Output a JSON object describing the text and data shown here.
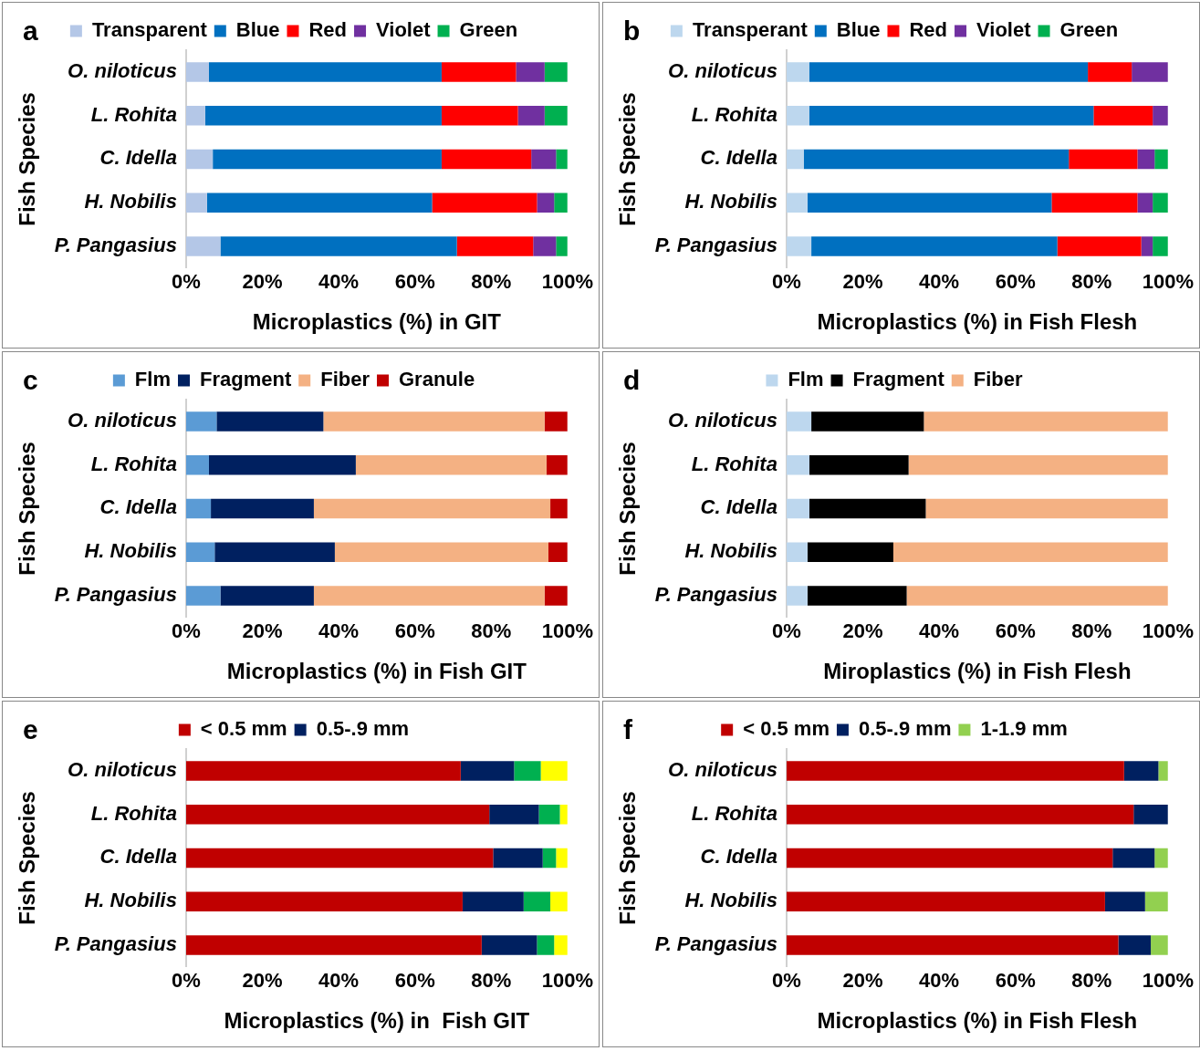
{
  "chart_data": [
    {
      "type": "bar",
      "title": "a",
      "orientation": "horizontal",
      "stacked": true,
      "legend": "top",
      "grid": false,
      "xlabel": "Microplastics (%) in GIT",
      "ylabel": "Fish Species",
      "categories": [
        "O. niloticus",
        "L. Rohita",
        "C. Idella",
        "H. Nobilis",
        "P. Pangasius"
      ],
      "xlim": [
        0,
        100
      ],
      "xticks": [
        {
          "value": 0,
          "label": "0%"
        },
        {
          "value": 20,
          "label": "20%"
        },
        {
          "value": 40,
          "label": "40%"
        },
        {
          "value": 60,
          "label": "60%"
        },
        {
          "value": 80,
          "label": "80%"
        },
        {
          "value": 100,
          "label": "100%"
        }
      ],
      "series": [
        {
          "name": "Transparent",
          "color": "#b4c7e7",
          "values": [
            6,
            5,
            7,
            5.5,
            9
          ]
        },
        {
          "name": "Blue",
          "color": "#0070c0",
          "values": [
            61,
            62,
            60,
            59,
            62
          ]
        },
        {
          "name": "Red",
          "color": "#ff0000",
          "values": [
            19.5,
            20,
            23.5,
            27.5,
            20
          ]
        },
        {
          "name": "Violet",
          "color": "#7030a0",
          "values": [
            7.5,
            7,
            6.5,
            4.5,
            6
          ]
        },
        {
          "name": "Green",
          "color": "#00b050",
          "values": [
            6,
            6,
            3,
            3.5,
            3
          ]
        }
      ]
    },
    {
      "type": "bar",
      "title": "b",
      "orientation": "horizontal",
      "stacked": true,
      "legend": "top",
      "grid": false,
      "xlabel": "Microplastics (%) in Fish Flesh",
      "ylabel": "Fish Species",
      "categories": [
        "O. niloticus",
        "L. Rohita",
        "C. Idella",
        "H. Nobilis",
        "P. Pangasius"
      ],
      "xlim": [
        0,
        100
      ],
      "xticks": [
        {
          "value": 0,
          "label": "0%"
        },
        {
          "value": 20,
          "label": "20%"
        },
        {
          "value": 40,
          "label": "40%"
        },
        {
          "value": 60,
          "label": "60%"
        },
        {
          "value": 80,
          "label": "80%"
        },
        {
          "value": 100,
          "label": "100%"
        }
      ],
      "series": [
        {
          "name": "Transperant",
          "color": "#bdd7ee",
          "values": [
            6,
            6,
            4.5,
            5.5,
            6.5
          ]
        },
        {
          "name": "Blue",
          "color": "#0070c0",
          "values": [
            73,
            74.5,
            69.5,
            64,
            64.5
          ]
        },
        {
          "name": "Red",
          "color": "#ff0000",
          "values": [
            11.5,
            15.5,
            18,
            22.5,
            22
          ]
        },
        {
          "name": "Violet",
          "color": "#7030a0",
          "values": [
            9.5,
            4,
            4.5,
            4,
            3
          ]
        },
        {
          "name": "Green",
          "color": "#00b050",
          "values": [
            0,
            0,
            3.5,
            4,
            4
          ]
        }
      ]
    },
    {
      "type": "bar",
      "title": "c",
      "orientation": "horizontal",
      "stacked": true,
      "legend": "top",
      "grid": false,
      "xlabel": "Microplastics (%) in Fish GIT",
      "ylabel": "Fish Species",
      "categories": [
        "O. niloticus",
        "L. Rohita",
        "C. Idella",
        "H. Nobilis",
        "P. Pangasius"
      ],
      "xlim": [
        0,
        100
      ],
      "xticks": [
        {
          "value": 0,
          "label": "0%"
        },
        {
          "value": 20,
          "label": "20%"
        },
        {
          "value": 40,
          "label": "40%"
        },
        {
          "value": 60,
          "label": "60%"
        },
        {
          "value": 80,
          "label": "80%"
        },
        {
          "value": 100,
          "label": "100%"
        }
      ],
      "series": [
        {
          "name": "Flm",
          "color": "#5b9bd5",
          "values": [
            8,
            6,
            6.5,
            7.5,
            9
          ]
        },
        {
          "name": "Fragment",
          "color": "#002060",
          "values": [
            28,
            38.5,
            27,
            31.5,
            24.5
          ]
        },
        {
          "name": "Fiber",
          "color": "#f4b183",
          "values": [
            58,
            50,
            62,
            56,
            60.5
          ]
        },
        {
          "name": "Granule",
          "color": "#c00000",
          "values": [
            6,
            5.5,
            4.5,
            5,
            6
          ]
        }
      ]
    },
    {
      "type": "bar",
      "title": "d",
      "orientation": "horizontal",
      "stacked": true,
      "legend": "top",
      "grid": false,
      "xlabel": "Miroplastics (%) in Fish Flesh",
      "ylabel": "Fish Species",
      "categories": [
        "O. niloticus",
        "L. Rohita",
        "C. Idella",
        "H. Nobilis",
        "P. Pangasius"
      ],
      "xlim": [
        0,
        100
      ],
      "xticks": [
        {
          "value": 0,
          "label": "0%"
        },
        {
          "value": 20,
          "label": "20%"
        },
        {
          "value": 40,
          "label": "40%"
        },
        {
          "value": 60,
          "label": "60%"
        },
        {
          "value": 80,
          "label": "80%"
        },
        {
          "value": 100,
          "label": "100%"
        }
      ],
      "series": [
        {
          "name": "Flm",
          "color": "#bdd7ee",
          "values": [
            6.5,
            6,
            6,
            5.5,
            5.5
          ]
        },
        {
          "name": "Fragment",
          "color": "#000000",
          "values": [
            29.5,
            26,
            30.5,
            22.5,
            26
          ]
        },
        {
          "name": "Fiber",
          "color": "#f4b183",
          "values": [
            64,
            68,
            63.5,
            72,
            68.5
          ]
        }
      ]
    },
    {
      "type": "bar",
      "title": "e",
      "orientation": "horizontal",
      "stacked": true,
      "legend": "top",
      "grid": false,
      "xlabel": "Microplastics (%) in  Fish GIT",
      "ylabel": "Fish Species",
      "categories": [
        "O. niloticus",
        "L. Rohita",
        "C. Idella",
        "H. Nobilis",
        "P. Pangasius"
      ],
      "xlim": [
        0,
        100
      ],
      "xticks": [
        {
          "value": 0,
          "label": "0%"
        },
        {
          "value": 20,
          "label": "20%"
        },
        {
          "value": 40,
          "label": "40%"
        },
        {
          "value": 60,
          "label": "60%"
        },
        {
          "value": 80,
          "label": "80%"
        },
        {
          "value": 100,
          "label": "100%"
        }
      ],
      "series": [
        {
          "name": "< 0.5 mm",
          "color": "#c00000",
          "values": [
            72,
            79.5,
            80.5,
            72.5,
            77.5
          ]
        },
        {
          "name": "0.5-.9 mm",
          "color": "#002060",
          "values": [
            14,
            13,
            13,
            16,
            14.5
          ]
        },
        {
          "color": "#00b050",
          "values": [
            7,
            5.5,
            3.5,
            7,
            4.5
          ]
        },
        {
          "color": "#ffff00",
          "values": [
            7,
            2,
            3,
            4.5,
            3.5
          ]
        }
      ]
    },
    {
      "type": "bar",
      "title": "f",
      "orientation": "horizontal",
      "stacked": true,
      "legend": "top",
      "grid": false,
      "xlabel": "Microplastics (%) in Fish Flesh",
      "ylabel": "Fish Species",
      "categories": [
        "O. niloticus",
        "L. Rohita",
        "C. Idella",
        "H. Nobilis",
        "P. Pangasius"
      ],
      "xlim": [
        0,
        100
      ],
      "xticks": [
        {
          "value": 0,
          "label": "0%"
        },
        {
          "value": 20,
          "label": "20%"
        },
        {
          "value": 40,
          "label": "40%"
        },
        {
          "value": 60,
          "label": "60%"
        },
        {
          "value": 80,
          "label": "80%"
        },
        {
          "value": 100,
          "label": "100%"
        }
      ],
      "series": [
        {
          "name": "< 0.5 mm",
          "color": "#c00000",
          "values": [
            88.5,
            91,
            85.5,
            83.5,
            87
          ]
        },
        {
          "name": "0.5-.9 mm",
          "color": "#002060",
          "values": [
            9,
            9,
            11,
            10.5,
            8.5
          ]
        },
        {
          "name": "1-1.9 mm",
          "color": "#92d050",
          "values": [
            2.5,
            0,
            3.5,
            6,
            4.5
          ]
        }
      ]
    }
  ]
}
